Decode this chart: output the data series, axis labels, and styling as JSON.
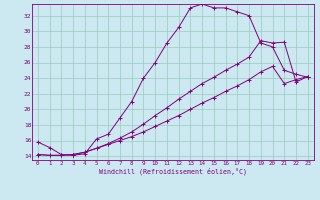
{
  "xlabel": "Windchill (Refroidissement éolien,°C)",
  "bg_color": "#cce8f0",
  "line_color": "#800080",
  "grid_color": "#99ccbb",
  "text_color": "#800080",
  "xlim": [
    -0.5,
    23.5
  ],
  "ylim": [
    13.5,
    33.5
  ],
  "yticks": [
    14,
    16,
    18,
    20,
    22,
    24,
    26,
    28,
    30,
    32
  ],
  "xticks": [
    0,
    1,
    2,
    3,
    4,
    5,
    6,
    7,
    8,
    9,
    10,
    11,
    12,
    13,
    14,
    15,
    16,
    17,
    18,
    19,
    20,
    21,
    22,
    23
  ],
  "line1_x": [
    0,
    1,
    2,
    3,
    4,
    5,
    6,
    7,
    8,
    9,
    10,
    11,
    12,
    13,
    14,
    15,
    16,
    17,
    18,
    19,
    20,
    21,
    22,
    23
  ],
  "line1_y": [
    15.8,
    15.1,
    14.2,
    14.1,
    14.3,
    16.2,
    16.8,
    18.9,
    21.0,
    24.0,
    26.0,
    28.5,
    30.5,
    33.0,
    33.5,
    33.0,
    33.0,
    32.5,
    32.0,
    28.5,
    28.0,
    25.0,
    24.5,
    24.1
  ],
  "line2_x": [
    0,
    1,
    2,
    3,
    4,
    5,
    6,
    7,
    8,
    9,
    10,
    11,
    12,
    13,
    14,
    15,
    16,
    17,
    18,
    19,
    20,
    21,
    22,
    23
  ],
  "line2_y": [
    14.2,
    14.1,
    14.1,
    14.2,
    14.5,
    15.0,
    15.6,
    16.3,
    17.1,
    18.1,
    19.2,
    20.2,
    21.3,
    22.3,
    23.3,
    24.1,
    25.0,
    25.8,
    26.7,
    28.8,
    28.5,
    28.6,
    23.5,
    24.2
  ],
  "line3_x": [
    0,
    1,
    2,
    3,
    4,
    5,
    6,
    7,
    8,
    9,
    10,
    11,
    12,
    13,
    14,
    15,
    16,
    17,
    18,
    19,
    20,
    21,
    22,
    23
  ],
  "line3_y": [
    14.2,
    14.1,
    14.1,
    14.2,
    14.5,
    15.0,
    15.5,
    16.0,
    16.5,
    17.1,
    17.8,
    18.5,
    19.2,
    20.0,
    20.8,
    21.5,
    22.3,
    23.0,
    23.8,
    24.8,
    25.5,
    23.3,
    23.8,
    24.2
  ]
}
